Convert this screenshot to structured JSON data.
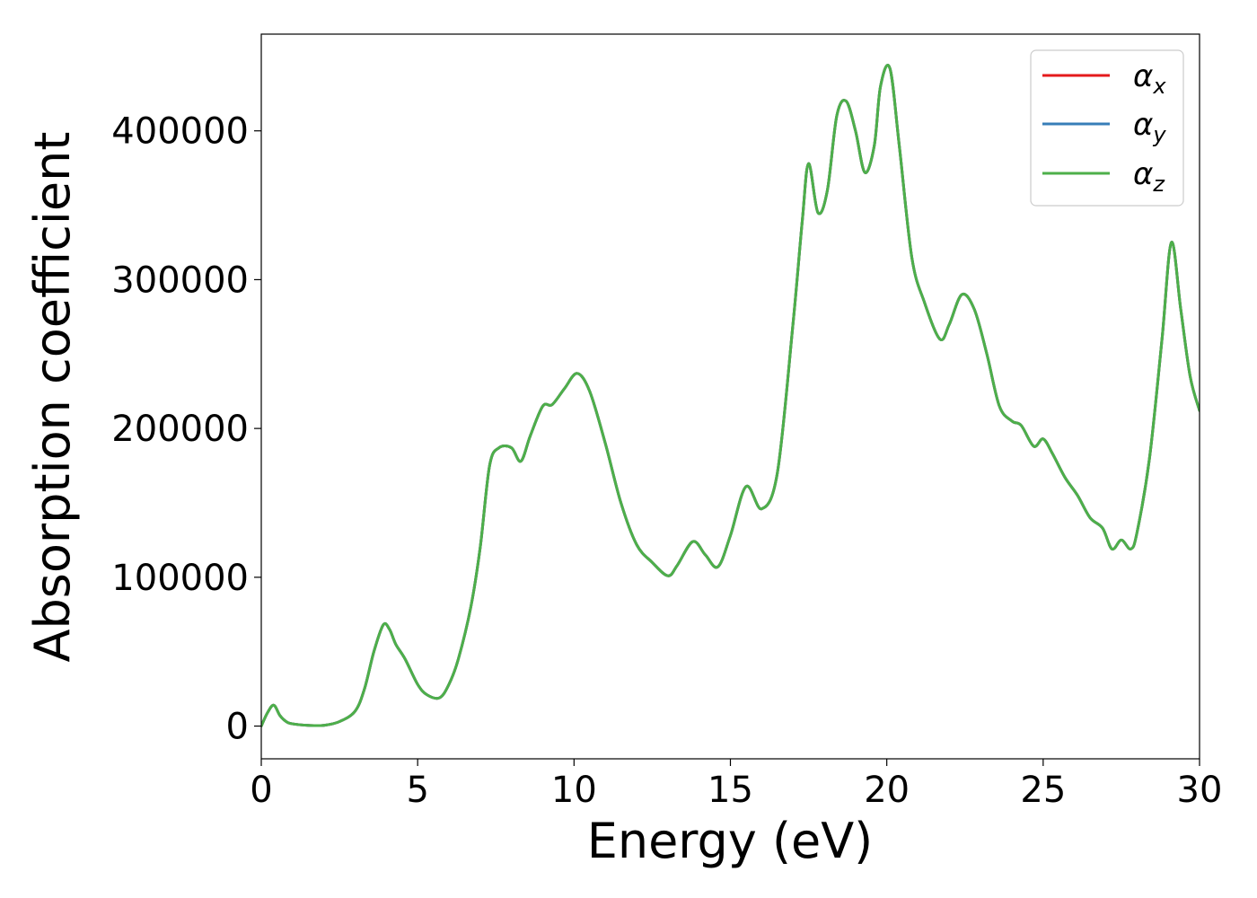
{
  "chart_data": {
    "type": "line",
    "xlabel": "Energy (eV)",
    "ylabel": "Absorption coefficient",
    "xlim": [
      0,
      30
    ],
    "ylim": [
      -22000,
      465000
    ],
    "xticks": [
      0,
      5,
      10,
      15,
      20,
      25,
      30
    ],
    "yticks": [
      0,
      100000,
      200000,
      300000,
      400000
    ],
    "grid": false,
    "legend_position": "top-right",
    "colors": {
      "alpha_x": "#e41a1c",
      "alpha_y": "#377eb8",
      "alpha_z": "#4daf4a"
    },
    "x": [
      0,
      0.2,
      0.4,
      0.6,
      0.8,
      1.0,
      1.5,
      2.0,
      2.5,
      3.0,
      3.3,
      3.6,
      3.9,
      4.1,
      4.3,
      4.6,
      5.0,
      5.3,
      5.7,
      6.0,
      6.3,
      6.7,
      7.0,
      7.3,
      7.6,
      8.0,
      8.3,
      8.6,
      9.0,
      9.3,
      9.7,
      10.1,
      10.5,
      11.0,
      11.5,
      12.0,
      12.5,
      13.0,
      13.3,
      13.8,
      14.2,
      14.6,
      15.0,
      15.5,
      16.0,
      16.5,
      17.0,
      17.3,
      17.5,
      17.8,
      18.1,
      18.4,
      18.7,
      19.0,
      19.3,
      19.6,
      19.8,
      20.1,
      20.4,
      20.8,
      21.2,
      21.7,
      22.0,
      22.4,
      22.8,
      23.2,
      23.6,
      24.0,
      24.3,
      24.7,
      25.0,
      25.3,
      25.7,
      26.1,
      26.5,
      26.9,
      27.2,
      27.5,
      27.8,
      28.0,
      28.4,
      28.8,
      29.1,
      29.4,
      29.7,
      30.0
    ],
    "series": [
      {
        "name": "α_x",
        "values": [
          0,
          9000,
          14000,
          7000,
          3000,
          1500,
          500,
          500,
          3000,
          10000,
          25000,
          50000,
          68000,
          65000,
          55000,
          45000,
          28000,
          21000,
          19000,
          28000,
          45000,
          80000,
          120000,
          175000,
          187000,
          187000,
          178000,
          195000,
          215000,
          216000,
          227000,
          237000,
          225000,
          190000,
          150000,
          122000,
          110000,
          101000,
          108000,
          124000,
          115000,
          107000,
          128000,
          161000,
          146000,
          170000,
          270000,
          340000,
          378000,
          345000,
          360000,
          410000,
          420000,
          400000,
          372000,
          390000,
          430000,
          442000,
          390000,
          315000,
          285000,
          260000,
          270000,
          290000,
          280000,
          250000,
          215000,
          205000,
          202000,
          188000,
          193000,
          183000,
          167000,
          155000,
          140000,
          133000,
          119000,
          125000,
          119000,
          130000,
          180000,
          260000,
          325000,
          280000,
          235000,
          212000
        ]
      },
      {
        "name": "α_y",
        "values": [
          0,
          9000,
          14000,
          7000,
          3000,
          1500,
          500,
          500,
          3000,
          10000,
          25000,
          50000,
          68000,
          65000,
          55000,
          45000,
          28000,
          21000,
          19000,
          28000,
          45000,
          80000,
          120000,
          175000,
          187000,
          187000,
          178000,
          195000,
          215000,
          216000,
          227000,
          237000,
          225000,
          190000,
          150000,
          122000,
          110000,
          101000,
          108000,
          124000,
          115000,
          107000,
          128000,
          161000,
          146000,
          170000,
          270000,
          340000,
          378000,
          345000,
          360000,
          410000,
          420000,
          400000,
          372000,
          390000,
          430000,
          442000,
          390000,
          315000,
          285000,
          260000,
          270000,
          290000,
          280000,
          250000,
          215000,
          205000,
          202000,
          188000,
          193000,
          183000,
          167000,
          155000,
          140000,
          133000,
          119000,
          125000,
          119000,
          130000,
          180000,
          260000,
          325000,
          280000,
          235000,
          212000
        ]
      },
      {
        "name": "α_z",
        "values": [
          0,
          9000,
          14000,
          7000,
          3000,
          1500,
          500,
          500,
          3000,
          10000,
          25000,
          50000,
          68000,
          65000,
          55000,
          45000,
          28000,
          21000,
          19000,
          28000,
          45000,
          80000,
          120000,
          175000,
          187000,
          187000,
          178000,
          195000,
          215000,
          216000,
          227000,
          237000,
          225000,
          190000,
          150000,
          122000,
          110000,
          101000,
          108000,
          124000,
          115000,
          107000,
          128000,
          161000,
          146000,
          170000,
          270000,
          340000,
          378000,
          345000,
          360000,
          410000,
          420000,
          400000,
          372000,
          390000,
          430000,
          442000,
          390000,
          315000,
          285000,
          260000,
          270000,
          290000,
          280000,
          250000,
          215000,
          205000,
          202000,
          188000,
          193000,
          183000,
          167000,
          155000,
          140000,
          133000,
          119000,
          125000,
          119000,
          130000,
          180000,
          260000,
          325000,
          280000,
          235000,
          212000
        ]
      }
    ],
    "legend": [
      {
        "base": "α",
        "sub": "x"
      },
      {
        "base": "α",
        "sub": "y"
      },
      {
        "base": "α",
        "sub": "z"
      }
    ]
  }
}
